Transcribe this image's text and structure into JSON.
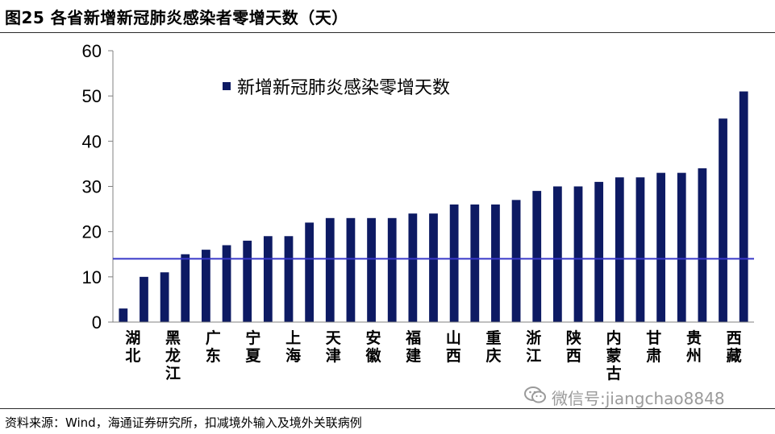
{
  "header": {
    "title": "图25 各省新增新冠肺炎感染者零增天数（天）"
  },
  "footer": {
    "source": "资料来源：Wind，海通证券研究所，扣减境外输入及境外关联病例"
  },
  "watermark": {
    "text": "微信号:jiangchao8848",
    "icon": "wechat-icon"
  },
  "colors": {
    "bar": "#0d1a63",
    "reference_line": "#3737c8",
    "axis": "#808080"
  },
  "chart_data": {
    "type": "bar",
    "categories": [
      "湖北",
      "黑龙江",
      "广东",
      "宁夏",
      "上海",
      "天津",
      "安徽",
      "福建",
      "山西",
      "重庆",
      "浙江",
      "陕西",
      "内蒙古",
      "甘肃",
      "贵州",
      "西藏"
    ],
    "category_labels": [
      {
        "name": "湖北",
        "below": true
      },
      {
        "name": "黑龙江",
        "below": true
      },
      {
        "name": "广东",
        "below": false
      },
      {
        "name": "宁夏",
        "below": false
      },
      {
        "name": "上海",
        "below": false
      },
      {
        "name": "天津",
        "below": false
      },
      {
        "name": "安徽",
        "below": false
      },
      {
        "name": "福建",
        "below": false
      },
      {
        "name": "山西",
        "below": false
      },
      {
        "name": "重庆",
        "below": false
      },
      {
        "name": "浙江",
        "below": false
      },
      {
        "name": "陕西",
        "below": false
      },
      {
        "name": "内蒙古",
        "below": true
      },
      {
        "name": "甘肃",
        "below": false
      },
      {
        "name": "贵州",
        "below": false
      },
      {
        "name": "西藏",
        "below": false
      }
    ],
    "bar_values": [
      3,
      10,
      11,
      15,
      16,
      17,
      18,
      19,
      19,
      22,
      23,
      23,
      23,
      23,
      24,
      24,
      26,
      26,
      26,
      27,
      29,
      30,
      30,
      31,
      32,
      32,
      33,
      33,
      34,
      45,
      51
    ],
    "reference_value": 14,
    "ylim": [
      0,
      60
    ],
    "yticks": [
      0,
      10,
      20,
      30,
      40,
      50,
      60
    ],
    "series": [
      {
        "name": "新增新冠肺炎感染零增天数"
      }
    ],
    "legend_position": "top-center",
    "grid": false
  }
}
